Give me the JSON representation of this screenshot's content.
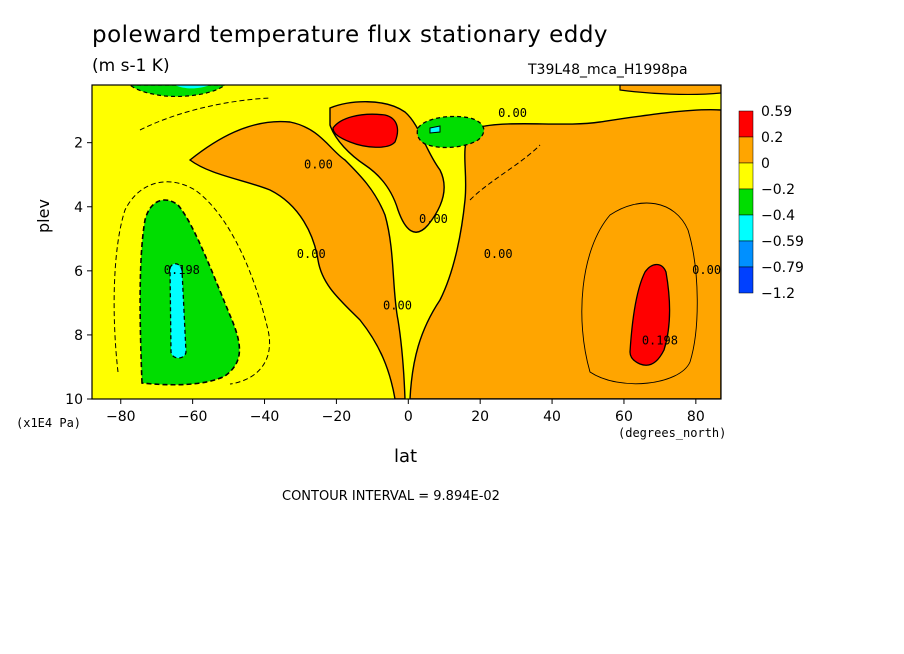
{
  "title": "poleward temperature flux stationary eddy",
  "units": "(m s-1 K)",
  "run_id": "T39L48_mca_H1998pa",
  "footer": "CONTOUR INTERVAL = 9.894E-02",
  "chart_data": {
    "type": "heatmap",
    "title": "poleward temperature flux stationary eddy",
    "xlabel": "lat",
    "xunits": "(degrees_north)",
    "ylabel": "plev",
    "yunits": "(x1E4 Pa)",
    "xlim": [
      -88,
      87
    ],
    "ylim": [
      10,
      0.2
    ],
    "xticks": [
      -80,
      -60,
      -40,
      -20,
      0,
      20,
      40,
      60,
      80
    ],
    "yticks": [
      2,
      4,
      6,
      8,
      10
    ],
    "legend": {
      "placement": "right",
      "levels": [
        "0.59",
        "0.2",
        "0",
        "-0.2",
        "-0.4",
        "-0.59",
        "-0.79",
        "-1.2"
      ],
      "colors": [
        "#ff0000",
        "#ffa500",
        "#ffff00",
        "#00dd00",
        "#00ffff",
        "#0090ff",
        "#0040ff"
      ]
    },
    "contour_labels": [
      {
        "text": "0.00",
        "lon": 29,
        "plev": 1.2
      },
      {
        "text": "0.00",
        "lon": -25,
        "plev": 2.8
      },
      {
        "text": "0.00",
        "lon": 7,
        "plev": 4.5
      },
      {
        "text": "0.00",
        "lon": -27,
        "plev": 5.6
      },
      {
        "text": "0.00",
        "lon": 25,
        "plev": 5.6
      },
      {
        "text": "0.00",
        "lon": -3,
        "plev": 7.2
      },
      {
        "text": "0.00",
        "lon": 83,
        "plev": 6.1
      },
      {
        "text": "0.198",
        "lon": -63,
        "plev": 6.1
      },
      {
        "text": "0.198",
        "lon": 70,
        "plev": 8.3
      }
    ]
  }
}
